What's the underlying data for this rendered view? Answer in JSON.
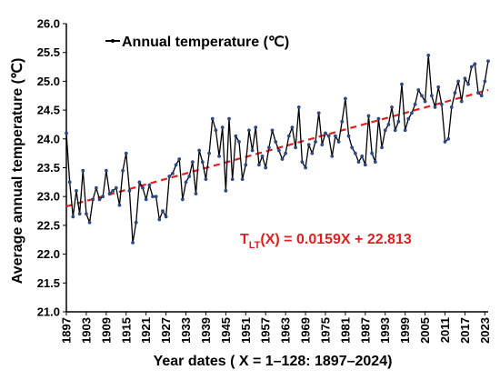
{
  "chart_data": {
    "type": "line",
    "title": "",
    "xlabel": "Year dates ( X = 1–128: 1897–2024)",
    "ylabel": "Average annual temperature (℃)",
    "ylim": [
      21.0,
      26.0
    ],
    "yticks": [
      "21.0",
      "21.5",
      "22.0",
      "22.5",
      "23.0",
      "23.5",
      "24.0",
      "24.5",
      "25.0",
      "25.5",
      "26.0"
    ],
    "xticks": [
      "1897",
      "1903",
      "1909",
      "1915",
      "1921",
      "1927",
      "1933",
      "1939",
      "1945",
      "1951",
      "1957",
      "1963",
      "1969",
      "1975",
      "1981",
      "1987",
      "1993",
      "1999",
      "2005",
      "2011",
      "2017",
      "2023"
    ],
    "grid": false,
    "legend_position": "top-left",
    "series": [
      {
        "name": "Annual temperature (℃)",
        "color": "#000000",
        "x": [
          1897,
          1898,
          1899,
          1900,
          1901,
          1902,
          1903,
          1904,
          1905,
          1906,
          1907,
          1908,
          1909,
          1910,
          1911,
          1912,
          1913,
          1914,
          1915,
          1916,
          1917,
          1918,
          1919,
          1920,
          1921,
          1922,
          1923,
          1924,
          1925,
          1926,
          1927,
          1928,
          1929,
          1930,
          1931,
          1932,
          1933,
          1934,
          1935,
          1936,
          1937,
          1938,
          1939,
          1940,
          1941,
          1942,
          1943,
          1944,
          1945,
          1946,
          1947,
          1948,
          1949,
          1950,
          1951,
          1952,
          1953,
          1954,
          1955,
          1956,
          1957,
          1958,
          1959,
          1960,
          1961,
          1962,
          1963,
          1964,
          1965,
          1966,
          1967,
          1968,
          1969,
          1970,
          1971,
          1972,
          1973,
          1974,
          1975,
          1976,
          1977,
          1978,
          1979,
          1980,
          1981,
          1982,
          1983,
          1984,
          1985,
          1986,
          1987,
          1988,
          1989,
          1990,
          1991,
          1992,
          1993,
          1994,
          1995,
          1996,
          1997,
          1998,
          1999,
          2000,
          2001,
          2002,
          2003,
          2004,
          2005,
          2006,
          2007,
          2008,
          2009,
          2010,
          2011,
          2012,
          2013,
          2014,
          2015,
          2016,
          2017,
          2018,
          2019,
          2020,
          2021,
          2022,
          2023,
          2024
        ],
        "values": [
          24.1,
          23.25,
          22.65,
          23.1,
          22.7,
          23.45,
          22.7,
          22.55,
          22.95,
          23.15,
          22.95,
          23.0,
          23.45,
          23.05,
          23.1,
          23.15,
          22.85,
          23.45,
          23.75,
          23.1,
          22.2,
          22.55,
          23.25,
          23.15,
          22.95,
          23.2,
          23.0,
          23.0,
          22.6,
          22.75,
          22.65,
          23.35,
          23.4,
          23.55,
          23.65,
          22.95,
          23.25,
          23.35,
          23.6,
          23.05,
          23.8,
          23.6,
          23.3,
          23.75,
          24.35,
          24.15,
          23.7,
          24.2,
          23.1,
          24.35,
          23.3,
          24.05,
          23.95,
          23.3,
          23.55,
          24.15,
          23.8,
          24.2,
          23.55,
          23.7,
          23.5,
          23.85,
          24.15,
          23.95,
          23.8,
          23.65,
          23.75,
          24.05,
          24.2,
          23.85,
          24.55,
          23.6,
          23.5,
          23.9,
          23.75,
          23.95,
          24.45,
          23.9,
          24.1,
          24.05,
          23.7,
          24.05,
          23.95,
          24.3,
          24.7,
          24.05,
          23.85,
          23.75,
          23.6,
          23.7,
          23.55,
          24.4,
          23.75,
          23.6,
          24.35,
          23.85,
          24.15,
          24.25,
          24.55,
          24.15,
          24.3,
          24.95,
          24.15,
          24.35,
          24.45,
          24.6,
          24.85,
          24.75,
          24.65,
          25.45,
          24.75,
          24.55,
          24.9,
          24.6,
          23.95,
          24.0,
          24.55,
          24.8,
          25.0,
          24.65,
          25.05,
          24.95,
          25.25,
          25.3,
          24.8,
          24.75,
          25.0,
          25.35
        ]
      }
    ],
    "trendline": {
      "equation": "T_LT(X) = 0.0159X + 22.813",
      "slope": 0.0159,
      "intercept": 22.813,
      "color": "#e02020",
      "style": "dashed"
    }
  },
  "legend": {
    "label": "Annual temperature (℃)"
  },
  "equation": {
    "main": "T",
    "sub": "LT",
    "rest": "(X) = 0.0159X + 22.813",
    "color": "#e02020"
  }
}
